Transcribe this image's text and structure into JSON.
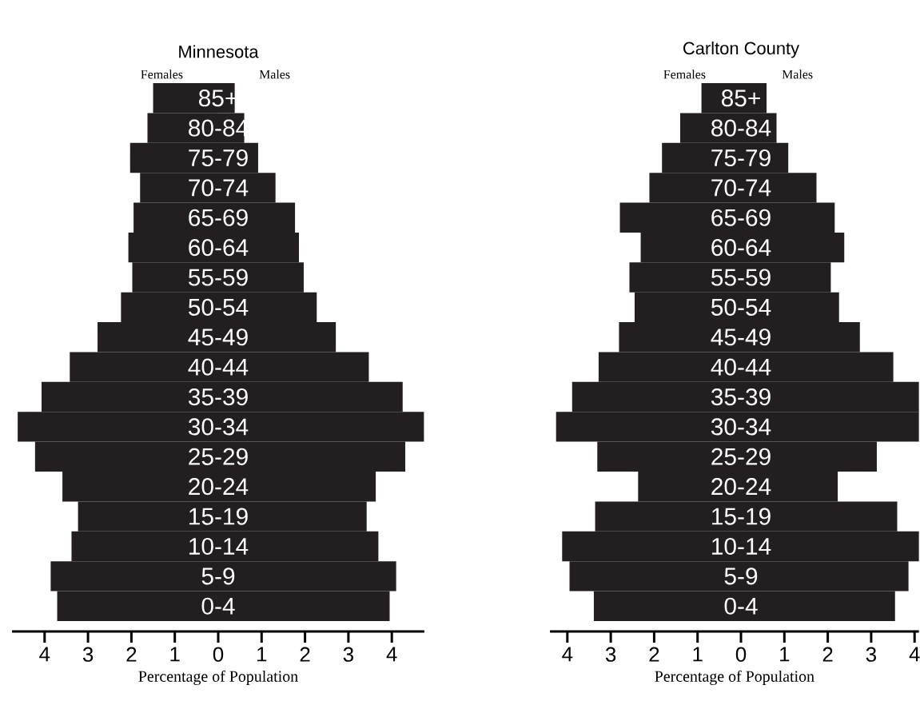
{
  "chart_data": [
    {
      "type": "bar",
      "orientation": "horizontal",
      "stacked": true,
      "title": "Minnesota",
      "xlabel": "Percentage of Population",
      "categories": [
        "85+",
        "80-84",
        "75-79",
        "70-74",
        "65-69",
        "60-64",
        "55-59",
        "50-54",
        "45-49",
        "40-44",
        "35-39",
        "30-34",
        "25-29",
        "20-24",
        "15-19",
        "10-14",
        "5-9",
        "0-4"
      ],
      "series": [
        {
          "name": "Females",
          "color": "#231f20",
          "values": [
            -1.5,
            -1.63,
            -2.03,
            -1.8,
            -1.95,
            -2.07,
            -1.98,
            -2.24,
            -2.78,
            -3.42,
            -4.07,
            -4.62,
            -4.22,
            -3.59,
            -3.23,
            -3.38,
            -3.86,
            -3.71
          ]
        },
        {
          "name": "Males",
          "color": "#231f20",
          "values": [
            0.38,
            0.6,
            0.92,
            1.32,
            1.77,
            1.86,
            1.97,
            2.27,
            2.71,
            3.47,
            4.25,
            4.74,
            4.31,
            3.63,
            3.42,
            3.69,
            4.1,
            3.95
          ]
        }
      ],
      "xlim": [
        -4.75,
        4.75
      ],
      "xticks": [
        {
          "value": -4,
          "label": "4"
        },
        {
          "value": -3,
          "label": "3"
        },
        {
          "value": -2,
          "label": "2"
        },
        {
          "value": -1,
          "label": "1"
        },
        0,
        1,
        2,
        3,
        4
      ]
    },
    {
      "type": "bar",
      "orientation": "horizontal",
      "stacked": true,
      "title": "Carlton County",
      "xlabel": "Percentage of Population",
      "categories": [
        "85+",
        "80-84",
        "75-79",
        "70-74",
        "65-69",
        "60-64",
        "55-59",
        "50-54",
        "45-49",
        "40-44",
        "35-39",
        "30-34",
        "25-29",
        "20-24",
        "15-19",
        "10-14",
        "5-9",
        "0-4"
      ],
      "series": [
        {
          "name": "Females",
          "color": "#231f20",
          "values": [
            -0.91,
            -1.4,
            -1.82,
            -2.11,
            -2.79,
            -2.31,
            -2.57,
            -2.45,
            -2.81,
            -3.28,
            -3.89,
            -4.26,
            -3.31,
            -2.37,
            -3.36,
            -4.12,
            -3.95,
            -3.39
          ]
        },
        {
          "name": "Males",
          "color": "#231f20",
          "values": [
            0.59,
            0.82,
            1.09,
            1.74,
            2.16,
            2.38,
            2.07,
            2.26,
            2.74,
            3.51,
            4.1,
            4.1,
            3.13,
            2.23,
            3.6,
            4.1,
            3.86,
            3.55
          ]
        }
      ],
      "xlim": [
        -4.4,
        4.1
      ],
      "xticks": [
        {
          "value": -4,
          "label": "4"
        },
        {
          "value": -3,
          "label": "3"
        },
        {
          "value": -2,
          "label": "2"
        },
        {
          "value": -1,
          "label": "1"
        },
        0,
        1,
        2,
        3,
        4
      ]
    }
  ]
}
